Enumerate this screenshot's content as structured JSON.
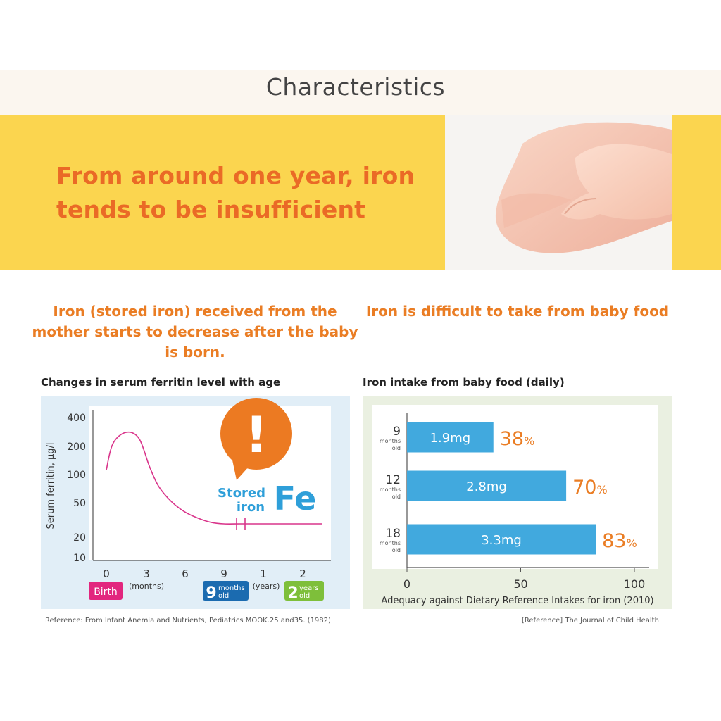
{
  "page": {
    "title": "Characteristics",
    "hero_lines": [
      "From around one year, iron",
      "tends to be insufficient"
    ],
    "left_heading_lines": [
      "Iron (stored iron) received from the",
      "mother starts to decrease after the baby",
      "is born."
    ],
    "right_heading": "Iron is difficult to take from baby food",
    "left_reference": "Reference: From Infant Anemia and Nutrients, Pediatrics MOOK.25 and35. (1982)",
    "right_reference": "[Reference] The Journal of Child Health",
    "colors": {
      "hero_bg": "#fbd54f",
      "hero_text": "#ea6a26",
      "accent_orange": "#ea7d24",
      "bar_blue": "#41a9de",
      "curve_pink": "#d9358b"
    }
  },
  "chart_data": [
    {
      "type": "line",
      "title": "Changes in serum ferritin level with age",
      "ylabel": "Serum ferritin, μg/l",
      "yscale": "log",
      "yticks": [
        "400",
        "200",
        "100",
        "50",
        "20",
        "10"
      ],
      "xticks_months": [
        "0",
        "3",
        "6",
        "9"
      ],
      "xticks_years": [
        "1",
        "2"
      ],
      "x_unit_months": "(months)",
      "x_unit_years": "(years)",
      "series": [
        {
          "x_months": [
            0,
            0.5,
            1.5,
            2.5,
            3.3,
            4,
            5,
            6,
            7,
            8,
            9,
            9.5,
            12,
            18,
            24,
            30
          ],
          "y": [
            100,
            200,
            270,
            230,
            110,
            65,
            43,
            33,
            28,
            25,
            24,
            24,
            24,
            24,
            24,
            24
          ]
        }
      ],
      "axis_break_at_months": 9.5,
      "badges": {
        "birth": "Birth",
        "nine_num": "9",
        "nine_unit_a": "months",
        "nine_unit_b": "old",
        "two_num": "2",
        "two_unit_a": "years",
        "two_unit_b": "old"
      },
      "callout": {
        "symbol": "!",
        "line1": "Stored",
        "line2": "iron",
        "element": "Fe"
      },
      "callout_color": "#ec7a22"
    },
    {
      "type": "bar",
      "orientation": "horizontal",
      "title": "Iron intake from baby food (daily)",
      "xlabel": "Adequacy against Dietary Reference Intakes for iron (2010)",
      "xlim": [
        0,
        100
      ],
      "xticks": [
        "0",
        "50",
        "100"
      ],
      "categories": [
        {
          "num": "9",
          "unit_a": "months",
          "unit_b": "old"
        },
        {
          "num": "12",
          "unit_a": "months",
          "unit_b": "old"
        },
        {
          "num": "18",
          "unit_a": "months",
          "unit_b": "old"
        }
      ],
      "values": [
        38,
        70,
        83
      ],
      "percent_sign": "%",
      "intake_labels": [
        "1.9mg",
        "2.8mg",
        "3.3mg"
      ]
    }
  ]
}
